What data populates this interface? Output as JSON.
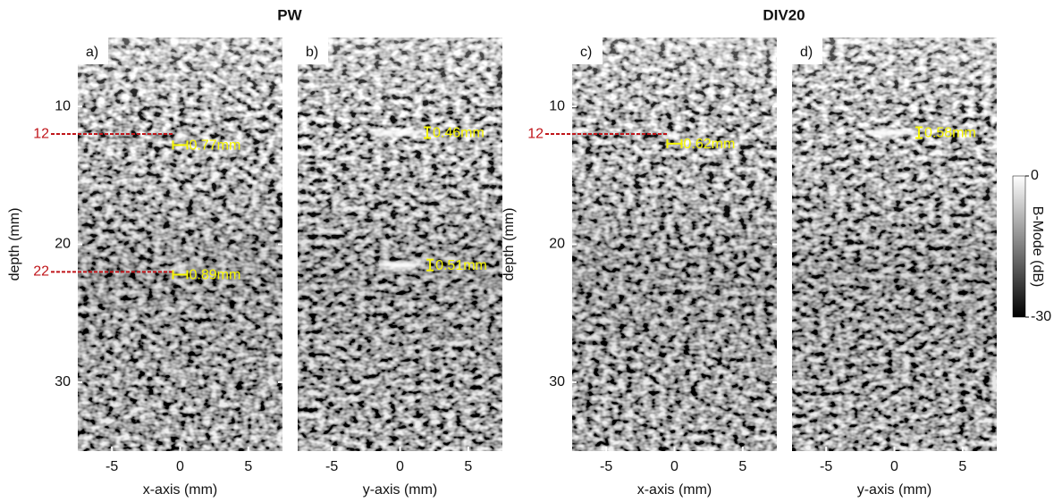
{
  "figure": {
    "titles": [
      "PW",
      "DIV20"
    ],
    "colorbar": {
      "label": "B-Mode (dB)",
      "lim": [
        -30,
        0
      ],
      "ticks": [
        0,
        -30
      ]
    }
  },
  "chart_data": [
    {
      "type": "image",
      "label": "a)",
      "xlabel": "x-axis (mm)",
      "ylabel": "depth (mm)",
      "xlim": [
        -7.5,
        7.5
      ],
      "ylim": [
        5,
        35
      ],
      "y_inverted": true,
      "xticks": [
        -5,
        0,
        5
      ],
      "yticks": [
        10,
        20,
        30
      ],
      "depth_markers": [
        12,
        22
      ],
      "measurements": [
        {
          "text": "0.77mm",
          "x": 0,
          "y": 12.8,
          "orientation": "horizontal"
        },
        {
          "text": "0.89mm",
          "x": 0,
          "y": 22.2,
          "orientation": "horizontal"
        }
      ]
    },
    {
      "type": "image",
      "label": "b)",
      "xlabel": "y-axis (mm)",
      "xlim": [
        -7.5,
        7.5
      ],
      "ylim": [
        5,
        35
      ],
      "y_inverted": true,
      "xticks": [
        -5,
        0,
        5
      ],
      "measurements": [
        {
          "text": "0.46mm",
          "x": 2,
          "y": 11.9,
          "orientation": "vertical"
        },
        {
          "text": "0.51mm",
          "x": 2.2,
          "y": 21.5,
          "orientation": "vertical"
        }
      ]
    },
    {
      "type": "image",
      "label": "c)",
      "xlabel": "x-axis (mm)",
      "ylabel": "depth (mm)",
      "xlim": [
        -7.5,
        7.5
      ],
      "ylim": [
        5,
        35
      ],
      "y_inverted": true,
      "xticks": [
        -5,
        0,
        5
      ],
      "yticks": [
        10,
        20,
        30
      ],
      "depth_markers": [
        12
      ],
      "measurements": [
        {
          "text": "0.62mm",
          "x": 0,
          "y": 12.7,
          "orientation": "horizontal"
        }
      ]
    },
    {
      "type": "image",
      "label": "d)",
      "xlabel": "y-axis (mm)",
      "xlim": [
        -7.5,
        7.5
      ],
      "ylim": [
        5,
        35
      ],
      "y_inverted": true,
      "xticks": [
        -5,
        0,
        5
      ],
      "measurements": [
        {
          "text": "0.58mm",
          "x": 1.8,
          "y": 11.9,
          "orientation": "vertical"
        }
      ]
    }
  ]
}
